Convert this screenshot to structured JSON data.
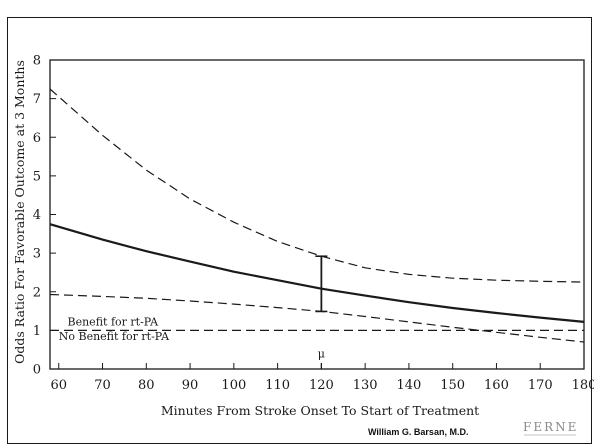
{
  "chart_data": {
    "type": "line",
    "title": "",
    "xlabel": "Minutes From Stroke Onset To Start of Treatment",
    "ylabel": "Odds Ratio For Favorable Outcome at 3 Months",
    "xlim": [
      58,
      180
    ],
    "ylim": [
      0,
      8
    ],
    "x_ticks": [
      60,
      70,
      80,
      90,
      100,
      110,
      120,
      130,
      140,
      150,
      160,
      170,
      180
    ],
    "y_ticks": [
      0,
      1,
      2,
      3,
      4,
      5,
      6,
      7,
      8
    ],
    "grid": false,
    "legend": "none",
    "series": [
      {
        "style": "solid",
        "x": [
          58,
          70,
          80,
          90,
          100,
          110,
          120,
          130,
          140,
          150,
          160,
          170,
          180
        ],
        "y": [
          3.75,
          3.35,
          3.05,
          2.78,
          2.52,
          2.3,
          2.08,
          1.9,
          1.73,
          1.58,
          1.45,
          1.33,
          1.22
        ]
      },
      {
        "style": "dashed",
        "x": [
          58,
          70,
          80,
          90,
          100,
          110,
          120,
          130,
          140,
          150,
          160,
          170,
          180
        ],
        "y": [
          7.25,
          6.05,
          5.15,
          4.4,
          3.8,
          3.3,
          2.92,
          2.62,
          2.45,
          2.35,
          2.3,
          2.27,
          2.25
        ]
      },
      {
        "style": "dashed",
        "x": [
          58,
          70,
          80,
          90,
          100,
          110,
          120,
          130,
          140,
          150,
          160,
          170,
          180
        ],
        "y": [
          1.93,
          1.88,
          1.83,
          1.76,
          1.68,
          1.59,
          1.49,
          1.36,
          1.22,
          1.08,
          0.95,
          0.82,
          0.7
        ]
      },
      {
        "style": "dashed",
        "x": [
          58,
          180
        ],
        "y": [
          1.0,
          1.0
        ]
      }
    ],
    "error_bar": {
      "x": 120,
      "low": 1.49,
      "high": 2.92
    },
    "annotations": [
      {
        "text": "Benefit for rt-PA",
        "x": 62,
        "y": 1.12
      },
      {
        "text": "No Benefit for rt-PA",
        "x": 60,
        "y": 0.75
      },
      {
        "text": "μ",
        "x": 120,
        "y": 0.3
      }
    ],
    "colors": {
      "line": "#1a1a1a",
      "axis": "#1a1a1a"
    }
  },
  "footer": {
    "credit": "William G. Barsan, M.D.",
    "logo": "FERNE"
  }
}
